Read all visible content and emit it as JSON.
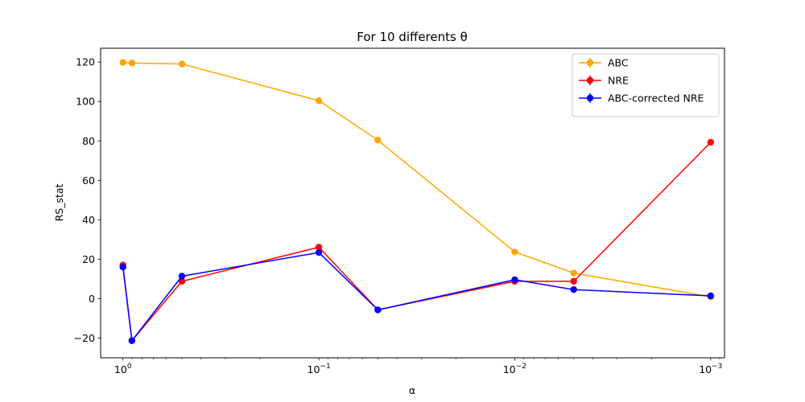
{
  "chart_data": {
    "type": "line",
    "title": "For 10 differents θ",
    "xlabel": "α",
    "ylabel": "RS_stat",
    "x_scale": "log",
    "x_inverted": true,
    "xlim": [
      1.3,
      0.00085
    ],
    "ylim": [
      -30,
      127
    ],
    "x_ticks": [
      {
        "value": 1,
        "base": "10",
        "exp": "0"
      },
      {
        "value": 0.1,
        "base": "10",
        "exp": "−1"
      },
      {
        "value": 0.01,
        "base": "10",
        "exp": "−2"
      },
      {
        "value": 0.001,
        "base": "10",
        "exp": "−3"
      }
    ],
    "y_ticks": [
      -20,
      0,
      20,
      40,
      60,
      80,
      100,
      120
    ],
    "y_tick_labels": [
      "−20",
      "0",
      "20",
      "40",
      "60",
      "80",
      "100",
      "120"
    ],
    "x": [
      1.0,
      0.9,
      0.5,
      0.1,
      0.05,
      0.01,
      0.005,
      0.001
    ],
    "series": [
      {
        "name": "ABC",
        "color": "#ffa500",
        "values": [
          119.8,
          119.5,
          119.0,
          100.4,
          80.4,
          23.7,
          13.0,
          0.9
        ]
      },
      {
        "name": "NRE",
        "color": "#ff0000",
        "values": [
          17.0,
          -21.3,
          8.8,
          26.1,
          -5.7,
          8.8,
          8.8,
          79.3
        ]
      },
      {
        "name": "ABC-corrected NRE",
        "color": "#0000ff",
        "values": [
          16.0,
          -21.3,
          11.4,
          23.4,
          -5.7,
          9.6,
          4.6,
          1.4
        ]
      }
    ],
    "legend_position": "top-right",
    "grid": false
  }
}
